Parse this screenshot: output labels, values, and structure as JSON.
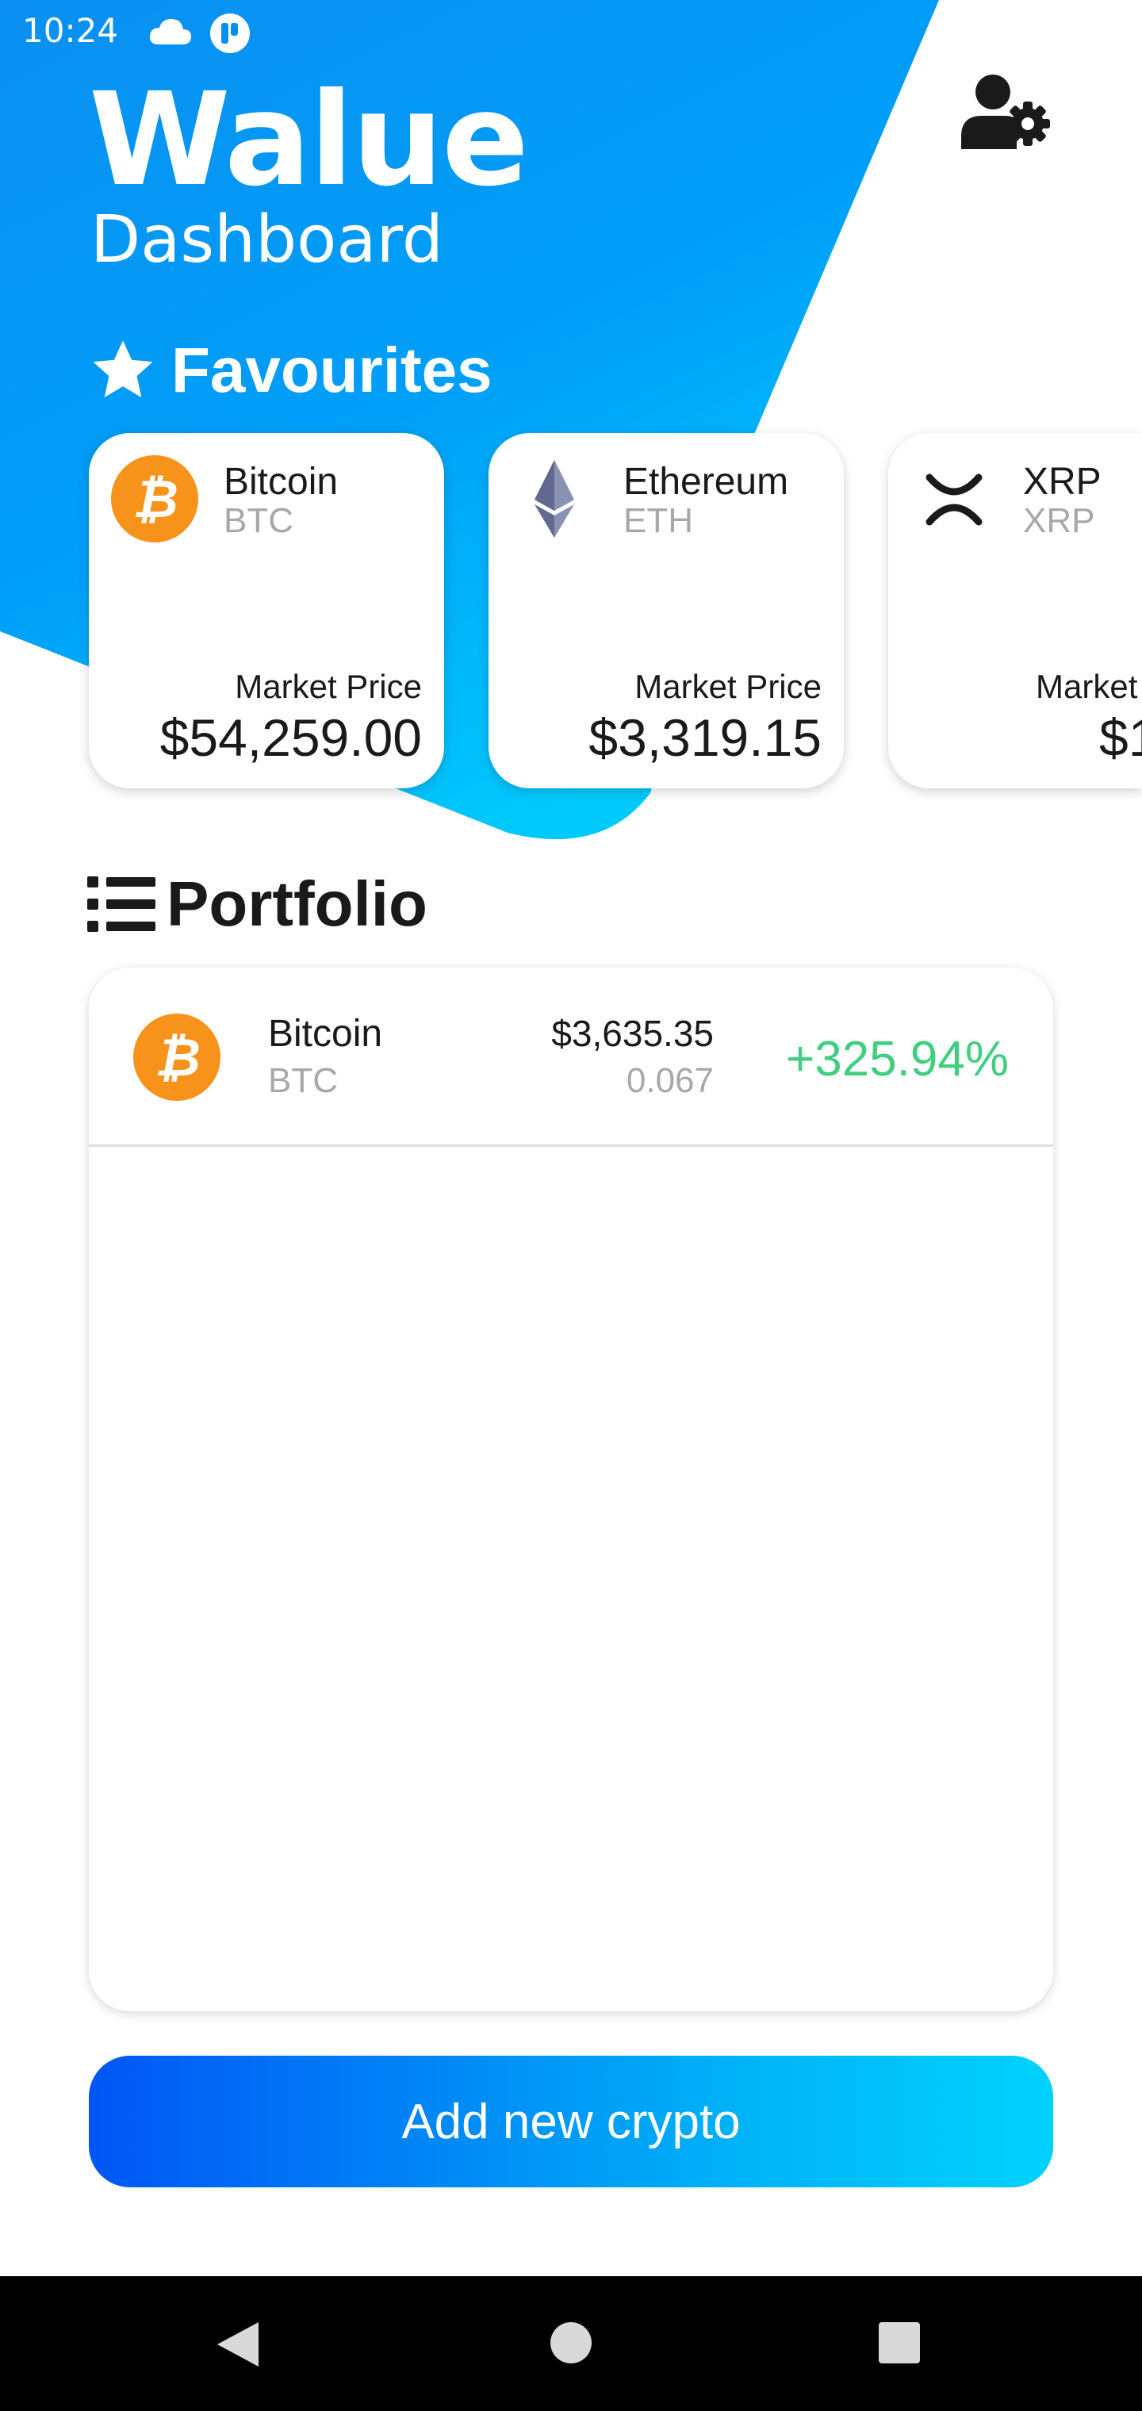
{
  "status_bar": {
    "time": "10:24"
  },
  "header": {
    "title": "Walue",
    "subtitle": "Dashboard"
  },
  "favourites": {
    "heading": "Favourites",
    "cards": [
      {
        "name": "Bitcoin",
        "symbol": "BTC",
        "price_label": "Market Price",
        "price": "$54,259.00",
        "icon": "bitcoin-icon"
      },
      {
        "name": "Ethereum",
        "symbol": "ETH",
        "price_label": "Market Price",
        "price": "$3,319.15",
        "icon": "ethereum-icon"
      },
      {
        "name": "XRP",
        "symbol": "XRP",
        "price_label": "Market",
        "price": "$1",
        "icon": "xrp-icon"
      }
    ]
  },
  "portfolio": {
    "heading": "Portfolio",
    "rows": [
      {
        "name": "Bitcoin",
        "symbol": "BTC",
        "value": "$3,635.35",
        "amount": "0.067",
        "change": "+325.94%",
        "icon": "bitcoin-icon"
      }
    ]
  },
  "actions": {
    "add_label": "Add new crypto"
  },
  "colors": {
    "gradient_start": "#0a8ff0",
    "gradient_end": "#00c8fb",
    "accent_positive": "#3fcf7f",
    "bitcoin_orange": "#f7931a",
    "button_start": "#0056f5",
    "button_end": "#00d2fc"
  }
}
